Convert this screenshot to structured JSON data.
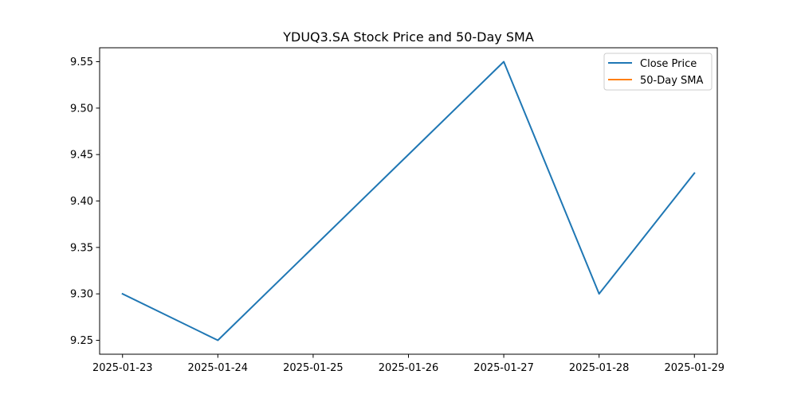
{
  "chart_data": {
    "type": "line",
    "title": "YDUQ3.SA Stock Price and 50-Day SMA",
    "xlabel": "",
    "ylabel": "",
    "x": [
      "2025-01-23",
      "2025-01-24",
      "2025-01-25",
      "2025-01-26",
      "2025-01-27",
      "2025-01-28",
      "2025-01-29"
    ],
    "x_ticks": [
      "2025-01-23",
      "2025-01-24",
      "2025-01-25",
      "2025-01-26",
      "2025-01-27",
      "2025-01-28",
      "2025-01-29"
    ],
    "y_ticks": [
      "9.25",
      "9.30",
      "9.35",
      "9.40",
      "9.45",
      "9.50",
      "9.55"
    ],
    "xlim": [
      "2025-01-22T18:14",
      "2025-01-29T05:46"
    ],
    "ylim": [
      9.235,
      9.565
    ],
    "grid": false,
    "legend_position": "top-right",
    "series": [
      {
        "name": "Close Price",
        "color": "#1f77b4",
        "points": [
          {
            "x": "2025-01-23",
            "y": 9.3
          },
          {
            "x": "2025-01-24",
            "y": 9.25
          },
          {
            "x": "2025-01-27",
            "y": 9.55
          },
          {
            "x": "2025-01-28",
            "y": 9.3
          },
          {
            "x": "2025-01-29",
            "y": 9.43
          }
        ]
      },
      {
        "name": "50-Day SMA",
        "color": "#ff7f0e",
        "points": []
      }
    ]
  }
}
